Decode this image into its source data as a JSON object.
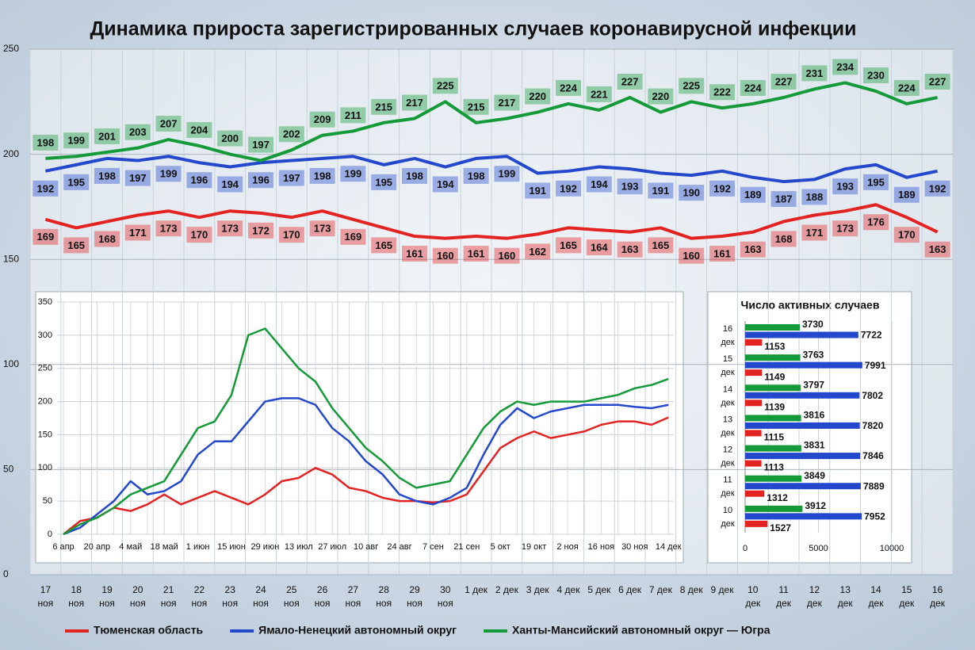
{
  "chart_data": [
    {
      "type": "line",
      "title": "Динамика прироста зарегистрированных случаев коронавирусной инфекции",
      "categories": [
        "17 ноя",
        "18 ноя",
        "19 ноя",
        "20 ноя",
        "21 ноя",
        "22 ноя",
        "23 ноя",
        "24 ноя",
        "25 ноя",
        "26 ноя",
        "27 ноя",
        "28 ноя",
        "29 ноя",
        "30 ноя",
        "1 дек",
        "2 дек",
        "3 дек",
        "4 дек",
        "5 дек",
        "6 дек",
        "7 дек",
        "8 дек",
        "9 дек",
        "10 дек",
        "11 дек",
        "12 дек",
        "13 дек",
        "14 дек",
        "15 дек",
        "16 дек"
      ],
      "series": [
        {
          "name": "Тюменская область",
          "color": "#e32222",
          "values": [
            169,
            165,
            168,
            171,
            173,
            170,
            173,
            172,
            170,
            173,
            169,
            165,
            161,
            160,
            161,
            160,
            162,
            165,
            164,
            163,
            165,
            160,
            161,
            163,
            168,
            171,
            173,
            176,
            170,
            163
          ]
        },
        {
          "name": "Ямало-Ненецкий автономный округ",
          "color": "#2448cc",
          "values": [
            192,
            195,
            198,
            197,
            199,
            196,
            194,
            196,
            197,
            198,
            199,
            195,
            198,
            194,
            198,
            199,
            191,
            192,
            194,
            193,
            191,
            190,
            192,
            189,
            187,
            188,
            193,
            195,
            189,
            192
          ]
        },
        {
          "name": "Ханты-Мансийский автономный округ — Югра",
          "color": "#159a3a",
          "values": [
            198,
            199,
            201,
            203,
            207,
            204,
            200,
            197,
            202,
            209,
            211,
            215,
            217,
            225,
            215,
            217,
            220,
            224,
            221,
            227,
            220,
            225,
            222,
            224,
            227,
            231,
            234,
            230,
            224,
            227
          ]
        }
      ],
      "ylim": [
        0,
        250
      ],
      "yticks": [
        0,
        50,
        100,
        150,
        200,
        250
      ],
      "grid": true,
      "legend": "bottom"
    },
    {
      "type": "line",
      "categories": [
        "6 апр",
        null,
        "20 апр",
        null,
        "4 май",
        null,
        "18 май",
        null,
        "1 июн",
        null,
        "15 июн",
        null,
        "29 июн",
        null,
        "13 июл",
        null,
        "27 июл",
        null,
        "10 авг",
        null,
        "24 авг",
        null,
        "7 сен",
        null,
        "21 сен",
        null,
        "5 окт",
        null,
        "19 окт",
        null,
        "2 ноя",
        null,
        "16 ноя",
        null,
        "30 ноя",
        null,
        "14 дек"
      ],
      "series": [
        {
          "color": "#e32222",
          "values": [
            0,
            20,
            25,
            40,
            35,
            45,
            60,
            45,
            55,
            65,
            55,
            45,
            60,
            80,
            85,
            100,
            90,
            70,
            65,
            55,
            50,
            50,
            48,
            50,
            60,
            95,
            130,
            145,
            155,
            145,
            150,
            155,
            165,
            170,
            170,
            165,
            176
          ]
        },
        {
          "color": "#2448cc",
          "values": [
            0,
            10,
            30,
            50,
            80,
            60,
            65,
            80,
            120,
            140,
            140,
            170,
            200,
            205,
            205,
            195,
            160,
            140,
            110,
            90,
            60,
            50,
            45,
            55,
            70,
            120,
            165,
            190,
            175,
            185,
            190,
            195,
            195,
            195,
            192,
            190,
            195
          ]
        },
        {
          "color": "#159a3a",
          "values": [
            0,
            15,
            25,
            40,
            60,
            70,
            80,
            120,
            160,
            170,
            210,
            300,
            310,
            280,
            250,
            230,
            190,
            160,
            130,
            110,
            85,
            70,
            75,
            80,
            120,
            160,
            185,
            200,
            195,
            200,
            200,
            200,
            205,
            210,
            220,
            225,
            234
          ]
        }
      ],
      "ylim": [
        0,
        350
      ],
      "yticks": [
        0,
        50,
        100,
        150,
        200,
        250,
        300,
        350
      ],
      "grid": true
    },
    {
      "type": "hbar",
      "title": "Число активных случаев",
      "categories": [
        "16 дек",
        "15 дек",
        "14 дек",
        "13 дек",
        "12 дек",
        "11 дек",
        "10 дек"
      ],
      "series": [
        {
          "color": "#159a3a",
          "values": [
            3730,
            3763,
            3797,
            3816,
            3831,
            3849,
            3912
          ]
        },
        {
          "color": "#2448cc",
          "values": [
            7722,
            7991,
            7802,
            7820,
            7846,
            7889,
            7952
          ]
        },
        {
          "color": "#e32222",
          "values": [
            1153,
            1149,
            1139,
            1115,
            1113,
            1312,
            1527
          ]
        }
      ],
      "xlim": [
        0,
        10000
      ],
      "xticks": [
        0,
        5000,
        10000
      ],
      "grid": true
    }
  ]
}
